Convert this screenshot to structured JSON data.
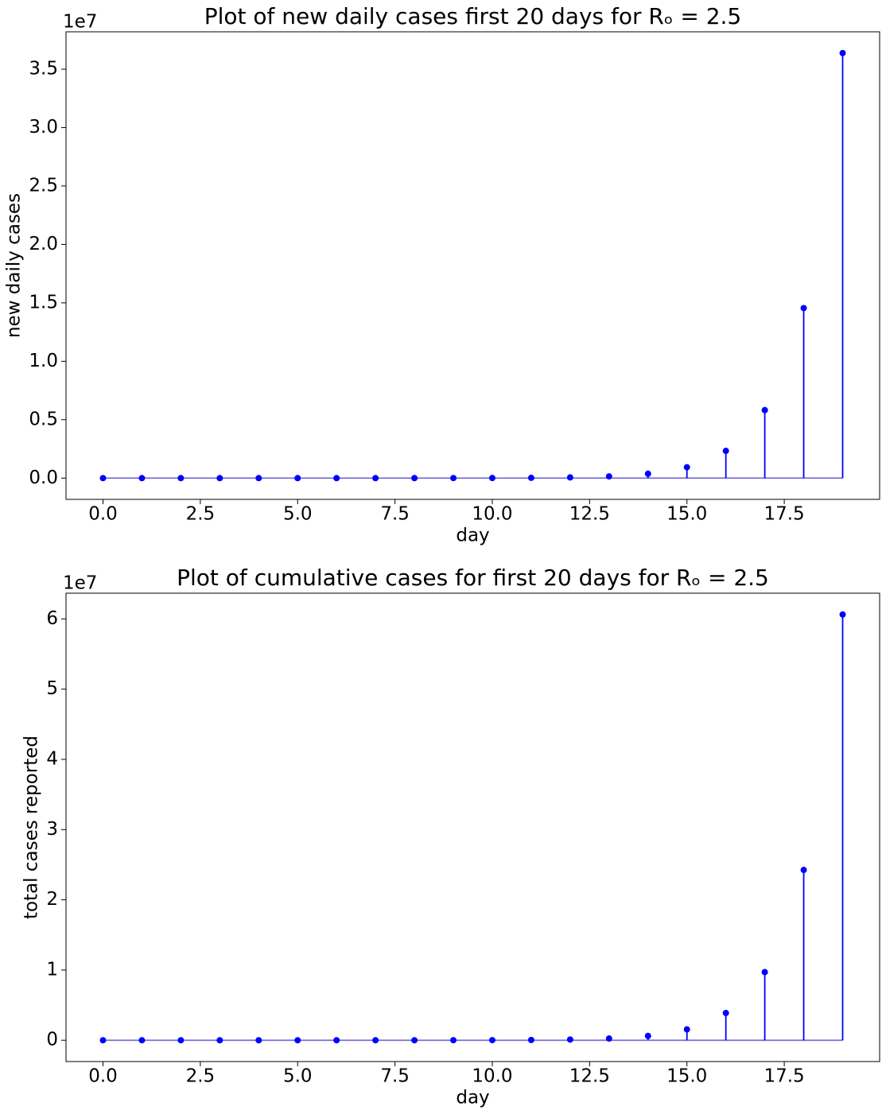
{
  "chart_data": [
    {
      "type": "stem",
      "title": "Plot of new daily cases first 20 days for Rₒ = 2.5",
      "x_label": "day",
      "y_label": "new daily cases",
      "y_offset_label": "1e7",
      "x": [
        0,
        1,
        2,
        3,
        4,
        5,
        6,
        7,
        8,
        9,
        10,
        11,
        12,
        13,
        14,
        15,
        16,
        17,
        18,
        19
      ],
      "series": [
        {
          "color": "#0000ff",
          "baseline_color": "#7a6fd8",
          "values": [
            1,
            2.5,
            6.25,
            15.6,
            39.1,
            97.7,
            244,
            610,
            1526,
            3815,
            9537,
            23842,
            59605,
            149012,
            372529,
            931323,
            2328306,
            5820766,
            14551915,
            36379788
          ]
        }
      ],
      "xlim": [
        -0.95,
        19.95
      ],
      "xticks": [
        {
          "value": 0,
          "label": "0.0"
        },
        2.5,
        {
          "value": 5,
          "label": "5.0"
        },
        7.5,
        {
          "value": 10,
          "label": "10.0"
        },
        12.5,
        {
          "value": 15,
          "label": "15.0"
        },
        17.5
      ],
      "ylim": [
        -1818989,
        38198777
      ],
      "yticks": [
        {
          "value": 0,
          "label": "0.0"
        },
        {
          "value": 5000000,
          "label": "0.5"
        },
        {
          "value": 10000000,
          "label": "1.0"
        },
        {
          "value": 15000000,
          "label": "1.5"
        },
        {
          "value": 20000000,
          "label": "2.0"
        },
        {
          "value": 25000000,
          "label": "2.5"
        },
        {
          "value": 30000000,
          "label": "3.0"
        },
        {
          "value": 35000000,
          "label": "3.5"
        }
      ]
    },
    {
      "type": "stem",
      "title": "Plot of cumulative cases for first 20 days for Rₒ = 2.5",
      "x_label": "day",
      "y_label": "total cases reported",
      "y_offset_label": "1e7",
      "x": [
        0,
        1,
        2,
        3,
        4,
        5,
        6,
        7,
        8,
        9,
        10,
        11,
        12,
        13,
        14,
        15,
        16,
        17,
        18,
        19
      ],
      "series": [
        {
          "color": "#0000ff",
          "baseline_color": "#7a6fd8",
          "values": [
            1,
            3.5,
            9.75,
            25.4,
            64.4,
            162,
            406,
            1017,
            2542,
            6357,
            15894,
            39736,
            99340,
            248352,
            620881,
            1552204,
            3880510,
            9701276,
            24253191,
            60632979
          ]
        }
      ],
      "xlim": [
        -0.95,
        19.95
      ],
      "xticks": [
        {
          "value": 0,
          "label": "0.0"
        },
        2.5,
        {
          "value": 5,
          "label": "5.0"
        },
        7.5,
        {
          "value": 10,
          "label": "10.0"
        },
        12.5,
        {
          "value": 15,
          "label": "15.0"
        },
        17.5
      ],
      "ylim": [
        -3031649,
        63664628
      ],
      "yticks": [
        0,
        {
          "value": 10000000,
          "label": "1"
        },
        {
          "value": 20000000,
          "label": "2"
        },
        {
          "value": 30000000,
          "label": "3"
        },
        {
          "value": 40000000,
          "label": "4"
        },
        {
          "value": 50000000,
          "label": "5"
        },
        {
          "value": 60000000,
          "label": "6"
        }
      ]
    }
  ]
}
